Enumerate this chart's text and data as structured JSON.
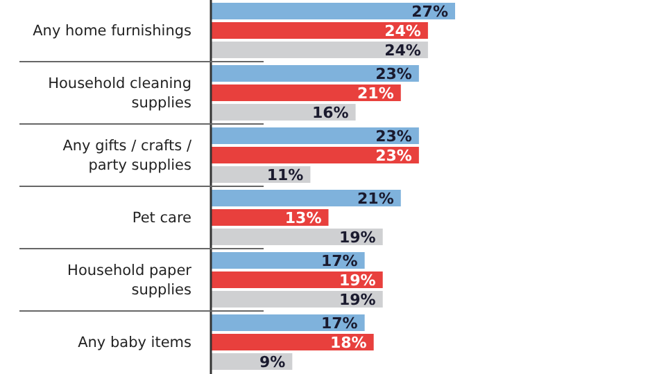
{
  "chart_data": {
    "type": "bar",
    "orientation": "horizontal",
    "categories": [
      "Any home furnishings",
      "Household cleaning supplies",
      "Any gifts / crafts / party supplies",
      "Pet care",
      "Household paper supplies",
      "Any baby items"
    ],
    "series": [
      {
        "color": "#7fb2dc",
        "values": [
          27,
          23,
          23,
          21,
          17,
          17
        ],
        "value_labels": [
          "27%",
          "23%",
          "23%",
          "21%",
          "17%",
          "17%"
        ]
      },
      {
        "color": "#e8403d",
        "values": [
          24,
          21,
          23,
          13,
          19,
          18
        ],
        "value_labels": [
          "24%",
          "21%",
          "23%",
          "13%",
          "19%",
          "18%"
        ]
      },
      {
        "color": "#cfd0d2",
        "values": [
          24,
          16,
          11,
          19,
          19,
          9
        ],
        "value_labels": [
          "24%",
          "16%",
          "11%",
          "19%",
          "19%",
          "9%"
        ]
      }
    ],
    "xlim": [
      0,
      27
    ]
  }
}
